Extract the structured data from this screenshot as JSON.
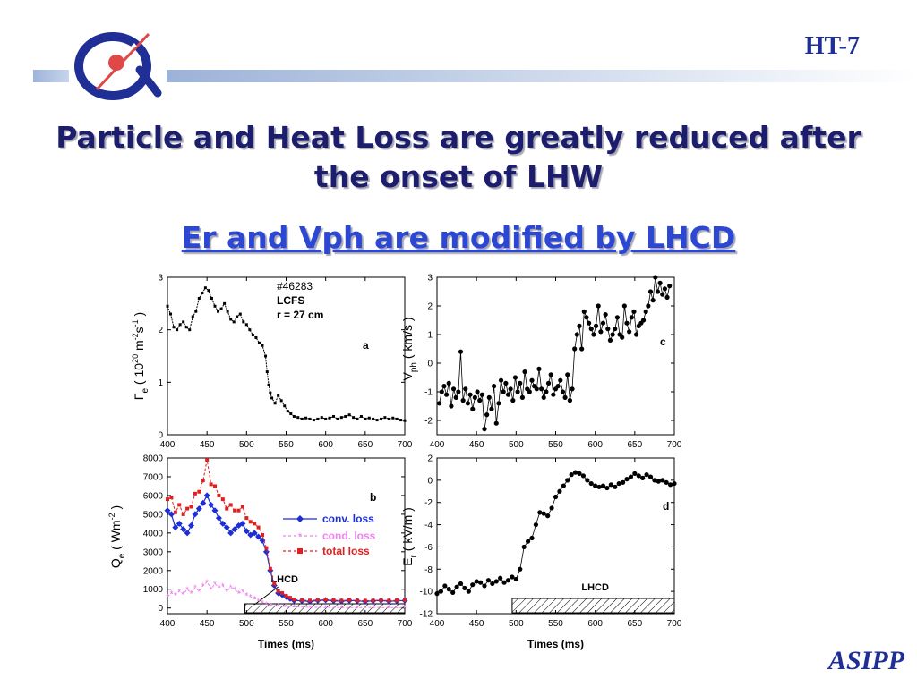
{
  "header": {
    "badge": "HT-7",
    "footer_logo": "ASIPP"
  },
  "slide": {
    "title": "Particle and Heat Loss are greatly reduced after the onset of LHW",
    "subtitle": "Er and Vph are modified by LHCD"
  },
  "colors": {
    "title": "#1d1d6e",
    "subtitle": "#2b47d3",
    "brand": "#1f2f96",
    "conv": "#1c2ed6",
    "cond": "#ee82ee",
    "total": "#e02020"
  },
  "chart_data": [
    {
      "type": "line",
      "panel": "a",
      "ylabel": "Γe ( 10^20 m^-2 s^-1 )",
      "xlim": [
        400,
        700
      ],
      "ylim": [
        0,
        3
      ],
      "xticks": [
        "400",
        "450",
        "500",
        "550",
        "600",
        "650",
        "700"
      ],
      "yticks": [
        "0",
        "1",
        "2",
        "3"
      ],
      "annotation": [
        "#46283",
        "LCFS",
        "r = 27 cm"
      ],
      "series": [
        {
          "x": [
            400,
            404,
            408,
            412,
            416,
            420,
            424,
            428,
            432,
            436,
            440,
            444,
            448,
            452,
            456,
            460,
            464,
            468,
            472,
            476,
            480,
            484,
            488,
            492,
            496,
            500,
            504,
            508,
            512,
            516,
            520,
            524,
            526,
            528,
            530,
            532,
            536,
            540,
            544,
            548,
            552,
            556,
            560,
            565,
            570,
            575,
            580,
            585,
            590,
            595,
            600,
            605,
            610,
            615,
            620,
            625,
            630,
            635,
            640,
            645,
            650,
            655,
            660,
            665,
            670,
            675,
            680,
            685,
            690,
            695,
            700
          ],
          "y": [
            2.45,
            2.3,
            2.05,
            2.0,
            2.1,
            2.15,
            2.05,
            2.0,
            2.25,
            2.35,
            2.6,
            2.7,
            2.8,
            2.75,
            2.6,
            2.45,
            2.35,
            2.4,
            2.5,
            2.35,
            2.2,
            2.15,
            2.25,
            2.3,
            2.15,
            2.1,
            2.0,
            1.9,
            1.85,
            1.75,
            1.7,
            1.5,
            1.2,
            0.95,
            0.8,
            0.7,
            0.6,
            0.75,
            0.65,
            0.55,
            0.45,
            0.4,
            0.35,
            0.33,
            0.3,
            0.32,
            0.3,
            0.28,
            0.3,
            0.33,
            0.3,
            0.32,
            0.35,
            0.3,
            0.33,
            0.35,
            0.38,
            0.33,
            0.3,
            0.35,
            0.3,
            0.32,
            0.3,
            0.28,
            0.3,
            0.33,
            0.3,
            0.32,
            0.3,
            0.28,
            0.27
          ]
        }
      ]
    },
    {
      "type": "scatter",
      "panel": "c",
      "ylabel": "V ph ( km/s )",
      "xlim": [
        400,
        700
      ],
      "ylim": [
        -2.5,
        3
      ],
      "xticks": [
        "400",
        "450",
        "500",
        "550",
        "600",
        "650",
        "700"
      ],
      "yticks": [
        "-2",
        "-1",
        "0",
        "1",
        "2",
        "3"
      ],
      "series": [
        {
          "x": [
            403,
            406,
            409,
            412,
            415,
            418,
            421,
            424,
            427,
            430,
            433,
            436,
            439,
            442,
            445,
            448,
            451,
            454,
            457,
            460,
            463,
            466,
            469,
            472,
            475,
            478,
            481,
            484,
            487,
            490,
            493,
            496,
            499,
            502,
            505,
            508,
            511,
            514,
            517,
            520,
            523,
            526,
            529,
            532,
            535,
            538,
            541,
            544,
            547,
            550,
            553,
            556,
            559,
            562,
            565,
            568,
            571,
            574,
            577,
            580,
            583,
            586,
            589,
            592,
            595,
            598,
            601,
            604,
            607,
            610,
            613,
            616,
            619,
            622,
            625,
            628,
            631,
            634,
            637,
            640,
            643,
            646,
            649,
            652,
            655,
            658,
            661,
            664,
            667,
            670,
            673,
            676,
            679,
            682,
            685,
            688,
            691,
            694
          ],
          "y": [
            -1.4,
            -1.0,
            -0.8,
            -1.1,
            -0.7,
            -1.5,
            -0.9,
            -1.2,
            -1.0,
            0.4,
            -1.3,
            -0.9,
            -1.4,
            -1.1,
            -1.6,
            -1.2,
            -1.0,
            -1.3,
            -1.1,
            -2.3,
            -1.8,
            -1.2,
            -1.6,
            -0.8,
            -2.1,
            -1.4,
            -0.6,
            -1.0,
            -0.7,
            -1.1,
            -0.9,
            -1.3,
            -0.5,
            -1.0,
            -0.7,
            -1.2,
            -0.3,
            -0.9,
            -1.0,
            -0.6,
            -0.8,
            -0.9,
            -0.2,
            -0.9,
            -1.2,
            -1.0,
            -0.7,
            -0.4,
            -1.1,
            -0.9,
            -0.8,
            -0.6,
            -1.0,
            -1.2,
            -0.4,
            -1.3,
            -0.9,
            0.5,
            1.0,
            1.3,
            0.5,
            1.8,
            1.6,
            1.4,
            1.2,
            1.0,
            1.3,
            2.0,
            1.1,
            1.4,
            1.7,
            1.2,
            0.8,
            1.0,
            1.2,
            1.6,
            1.0,
            0.9,
            2.0,
            1.4,
            1.1,
            1.6,
            1.8,
            1.0,
            1.3,
            1.4,
            1.5,
            1.8,
            2.0,
            2.5,
            2.2,
            3.0,
            2.5,
            2.8,
            2.4,
            2.6,
            2.3,
            2.7
          ]
        }
      ]
    },
    {
      "type": "line",
      "panel": "b",
      "ylabel": "Qe ( Wm^-2 )",
      "xlabel": "Times (ms)",
      "xlim": [
        400,
        700
      ],
      "ylim": [
        -300,
        8000
      ],
      "xticks": [
        "400",
        "450",
        "500",
        "550",
        "600",
        "650",
        "700"
      ],
      "yticks": [
        "0",
        "1000",
        "2000",
        "3000",
        "4000",
        "5000",
        "6000",
        "7000",
        "8000"
      ],
      "legend": [
        "conv. loss",
        "cond. loss",
        "total loss"
      ],
      "band_label": "LHCD",
      "series": [
        {
          "name": "conv. loss",
          "x": [
            400,
            405,
            410,
            415,
            420,
            425,
            430,
            435,
            440,
            445,
            450,
            455,
            460,
            465,
            470,
            475,
            480,
            485,
            490,
            495,
            500,
            505,
            510,
            515,
            520,
            525,
            530,
            535,
            540,
            545,
            550,
            555,
            560,
            570,
            580,
            590,
            600,
            610,
            620,
            630,
            640,
            650,
            660,
            670,
            680,
            690,
            700
          ],
          "y": [
            5200,
            5000,
            4300,
            4500,
            4200,
            4000,
            4400,
            5000,
            5300,
            5600,
            6000,
            5500,
            5200,
            4800,
            4500,
            4300,
            4000,
            4200,
            4400,
            4500,
            4100,
            3900,
            4000,
            3800,
            3600,
            3000,
            2000,
            1200,
            800,
            700,
            600,
            500,
            400,
            380,
            350,
            400,
            420,
            380,
            360,
            400,
            380,
            350,
            380,
            400,
            360,
            380,
            400
          ]
        },
        {
          "name": "cond. loss",
          "x": [
            400,
            405,
            410,
            415,
            420,
            425,
            430,
            435,
            440,
            445,
            450,
            455,
            460,
            465,
            470,
            475,
            480,
            485,
            490,
            495,
            500,
            505,
            510,
            515,
            520,
            525,
            530,
            540,
            550,
            560,
            580,
            600,
            620,
            640,
            660,
            680,
            700
          ],
          "y": [
            600,
            800,
            700,
            900,
            750,
            1000,
            800,
            1100,
            900,
            1200,
            1400,
            1000,
            1300,
            1100,
            1200,
            900,
            1100,
            1000,
            800,
            900,
            700,
            600,
            500,
            400,
            300,
            200,
            150,
            100,
            80,
            60,
            40,
            30,
            20,
            20,
            30,
            20,
            20
          ]
        },
        {
          "name": "total loss",
          "x": [
            400,
            405,
            410,
            415,
            420,
            425,
            430,
            435,
            440,
            445,
            450,
            455,
            460,
            465,
            470,
            475,
            480,
            485,
            490,
            495,
            500,
            505,
            510,
            515,
            520,
            525,
            530,
            535,
            540,
            545,
            550,
            555,
            560,
            570,
            580,
            590,
            600,
            610,
            620,
            630,
            640,
            650,
            660,
            670,
            680,
            690,
            700
          ],
          "y": [
            5800,
            5900,
            5100,
            5500,
            5000,
            5300,
            5400,
            6100,
            6200,
            6800,
            7900,
            6600,
            6500,
            6000,
            5800,
            5300,
            5500,
            5200,
            5200,
            5400,
            4800,
            4600,
            4500,
            4300,
            3900,
            3200,
            2100,
            1300,
            900,
            800,
            650,
            550,
            450,
            420,
            400,
            430,
            450,
            420,
            400,
            430,
            400,
            390,
            400,
            420,
            400,
            410,
            420
          ]
        }
      ]
    },
    {
      "type": "scatter",
      "panel": "d",
      "ylabel": "E r ( kV/m )",
      "xlabel": "Times (ms)",
      "xlim": [
        400,
        700
      ],
      "ylim": [
        -12,
        2
      ],
      "xticks": [
        "400",
        "450",
        "500",
        "550",
        "600",
        "650",
        "700"
      ],
      "yticks": [
        "-12",
        "-10",
        "-8",
        "-6",
        "-4",
        "-2",
        "0",
        "2"
      ],
      "band_label": "LHCD",
      "series": [
        {
          "x": [
            400,
            405,
            410,
            415,
            420,
            425,
            430,
            435,
            440,
            445,
            450,
            455,
            460,
            465,
            470,
            475,
            480,
            485,
            490,
            495,
            500,
            505,
            510,
            515,
            520,
            525,
            530,
            535,
            540,
            545,
            550,
            555,
            560,
            565,
            570,
            575,
            580,
            585,
            590,
            595,
            600,
            605,
            610,
            615,
            620,
            625,
            630,
            635,
            640,
            645,
            650,
            655,
            660,
            665,
            670,
            675,
            680,
            685,
            690,
            695,
            700
          ],
          "y": [
            -10.2,
            -10.0,
            -9.5,
            -9.8,
            -10.1,
            -9.6,
            -9.3,
            -9.7,
            -10.0,
            -9.4,
            -9.1,
            -9.2,
            -9.5,
            -9.0,
            -9.3,
            -9.1,
            -8.8,
            -9.2,
            -9.0,
            -8.7,
            -8.9,
            -8.0,
            -6.0,
            -5.5,
            -5.2,
            -4.0,
            -2.9,
            -3.0,
            -3.2,
            -2.5,
            -1.5,
            -1.0,
            -0.5,
            0.0,
            0.5,
            0.7,
            0.6,
            0.4,
            0.0,
            -0.3,
            -0.5,
            -0.6,
            -0.5,
            -0.7,
            -0.4,
            -0.6,
            -0.3,
            -0.2,
            0.1,
            0.3,
            0.6,
            0.4,
            0.2,
            0.5,
            0.3,
            0.0,
            -0.1,
            0.0,
            -0.2,
            -0.4,
            -0.3
          ]
        }
      ]
    }
  ]
}
